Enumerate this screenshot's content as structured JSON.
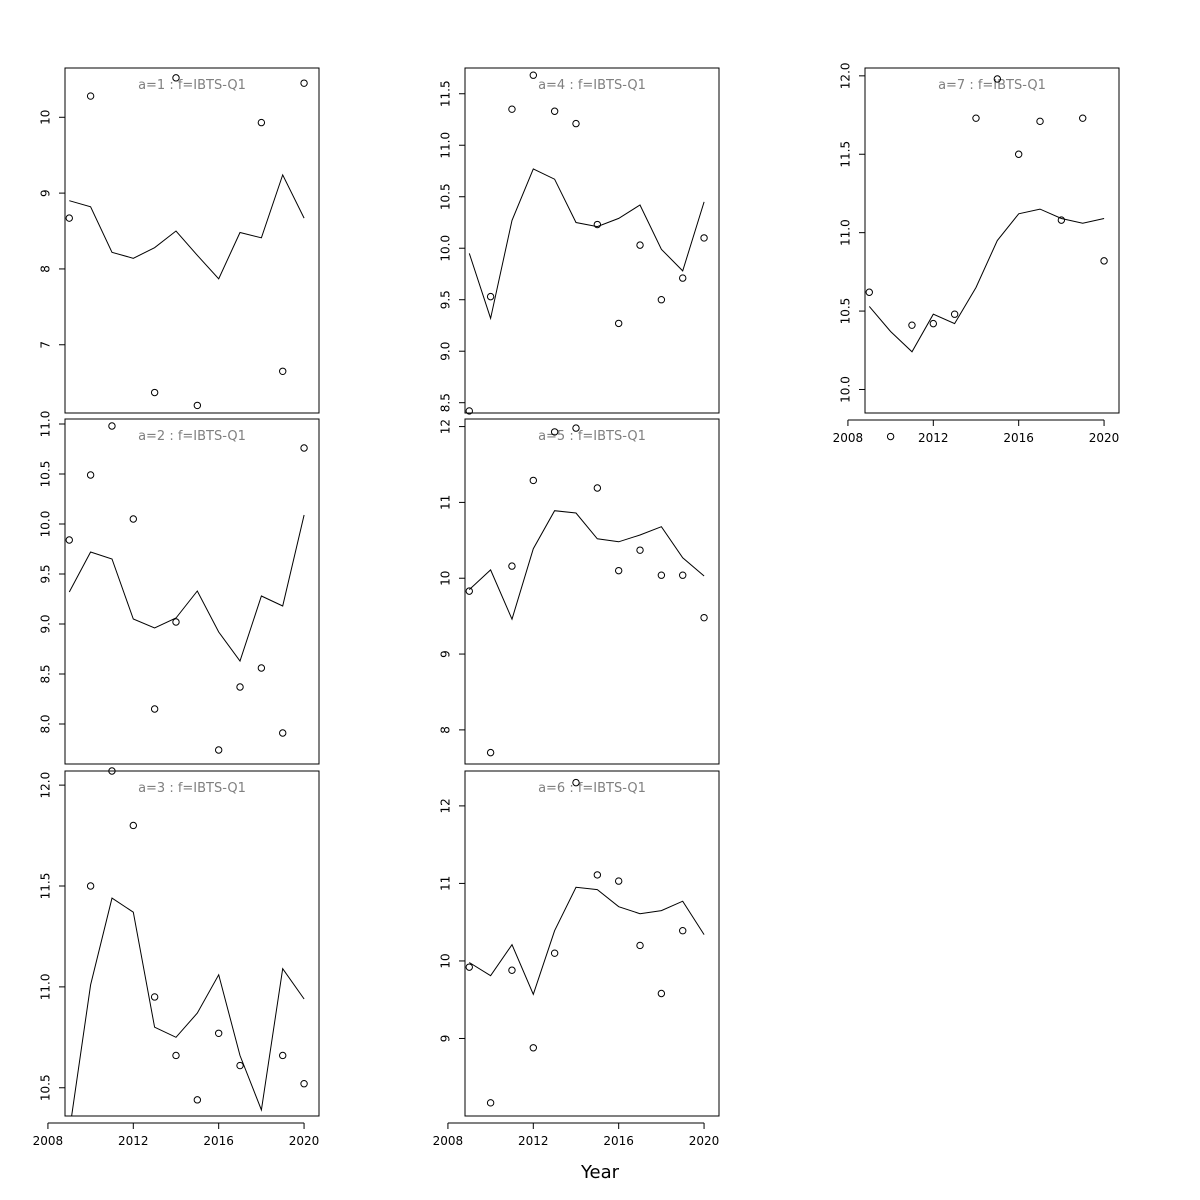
{
  "figure": {
    "xlabel": "Year"
  },
  "chart_data": [
    {
      "type": "scatter",
      "title": "a=1  :  f=IBTS-Q1",
      "x_ticks": [],
      "y_ticks": [
        "7",
        "8",
        "9",
        "10"
      ],
      "xlim": [
        2008.8,
        2020.7
      ],
      "ylim": [
        6.1,
        10.65
      ],
      "years": [
        2009,
        2010,
        2011,
        2012,
        2013,
        2014,
        2015,
        2016,
        2017,
        2018,
        2019,
        2020
      ],
      "observed": [
        8.67,
        10.28,
        null,
        null,
        6.37,
        10.52,
        6.2,
        null,
        null,
        9.93,
        6.65,
        10.45
      ],
      "fitted": [
        8.9,
        8.82,
        8.22,
        8.14,
        8.28,
        8.5,
        8.18,
        7.87,
        8.48,
        8.41,
        9.24,
        8.67
      ]
    },
    {
      "type": "scatter",
      "title": "a=2  :  f=IBTS-Q1",
      "x_ticks": [],
      "y_ticks": [
        "8.0",
        "8.5",
        "9.0",
        "9.5",
        "10.0",
        "10.5",
        "11.0"
      ],
      "xlim": [
        2008.8,
        2020.7
      ],
      "ylim": [
        7.6,
        11.05
      ],
      "years": [
        2009,
        2010,
        2011,
        2012,
        2013,
        2014,
        2015,
        2016,
        2017,
        2018,
        2019,
        2020
      ],
      "observed": [
        9.84,
        10.49,
        10.98,
        10.05,
        8.15,
        9.02,
        null,
        7.74,
        8.37,
        8.56,
        7.91,
        10.76
      ],
      "fitted": [
        9.32,
        9.72,
        9.65,
        9.05,
        8.96,
        9.06,
        9.33,
        8.92,
        8.63,
        9.28,
        9.18,
        10.09
      ]
    },
    {
      "type": "scatter",
      "title": "a=3  :  f=IBTS-Q1",
      "x_ticks": [
        "2008",
        "2012",
        "2016",
        "2020"
      ],
      "y_ticks": [
        "10.5",
        "11.0",
        "11.5",
        "12.0"
      ],
      "xlim": [
        2008.8,
        2020.7
      ],
      "ylim": [
        10.36,
        12.07
      ],
      "years": [
        2009,
        2010,
        2011,
        2012,
        2013,
        2014,
        2015,
        2016,
        2017,
        2018,
        2019,
        2020
      ],
      "observed": [
        null,
        11.5,
        12.07,
        11.8,
        10.95,
        10.66,
        10.44,
        10.77,
        10.61,
        null,
        10.66,
        10.52
      ],
      "fitted": [
        10.28,
        11.01,
        11.44,
        11.37,
        10.8,
        10.75,
        10.87,
        11.06,
        10.66,
        10.39,
        11.09,
        10.94
      ]
    },
    {
      "type": "scatter",
      "title": "a=4  :  f=IBTS-Q1",
      "x_ticks": [],
      "y_ticks": [
        "8.5",
        "9.0",
        "9.5",
        "10.0",
        "10.5",
        "11.0",
        "11.5"
      ],
      "xlim": [
        2008.8,
        2020.7
      ],
      "ylim": [
        8.4,
        11.75
      ],
      "years": [
        2009,
        2010,
        2011,
        2012,
        2013,
        2014,
        2015,
        2016,
        2017,
        2018,
        2019,
        2020
      ],
      "observed": [
        8.42,
        9.53,
        11.35,
        11.68,
        11.33,
        11.21,
        10.23,
        9.27,
        10.03,
        9.5,
        9.71,
        10.1
      ],
      "fitted": [
        9.95,
        9.32,
        10.27,
        10.77,
        10.67,
        10.25,
        10.21,
        10.29,
        10.42,
        9.99,
        9.78,
        10.45
      ]
    },
    {
      "type": "scatter",
      "title": "a=5  :  f=IBTS-Q1",
      "x_ticks": [],
      "y_ticks": [
        "8",
        "9",
        "10",
        "11",
        "12"
      ],
      "xlim": [
        2008.8,
        2020.7
      ],
      "ylim": [
        7.55,
        12.1
      ],
      "years": [
        2009,
        2010,
        2011,
        2012,
        2013,
        2014,
        2015,
        2016,
        2017,
        2018,
        2019,
        2020
      ],
      "observed": [
        9.83,
        7.7,
        10.16,
        11.29,
        11.93,
        11.98,
        11.19,
        10.1,
        10.37,
        10.04,
        10.04,
        9.48
      ],
      "fitted": [
        9.85,
        10.11,
        9.46,
        10.39,
        10.89,
        10.86,
        10.52,
        10.48,
        10.57,
        10.68,
        10.27,
        10.03
      ]
    },
    {
      "type": "scatter",
      "title": "a=6  :  f=IBTS-Q1",
      "x_ticks": [
        "2008",
        "2012",
        "2016",
        "2020"
      ],
      "y_ticks": [
        "9",
        "10",
        "11",
        "12"
      ],
      "xlim": [
        2008.8,
        2020.7
      ],
      "ylim": [
        8.0,
        12.45
      ],
      "years": [
        2009,
        2010,
        2011,
        2012,
        2013,
        2014,
        2015,
        2016,
        2017,
        2018,
        2019,
        2020
      ],
      "observed": [
        9.92,
        8.17,
        9.88,
        8.88,
        10.1,
        12.3,
        11.11,
        11.03,
        10.2,
        9.58,
        10.39,
        null
      ],
      "fitted": [
        9.98,
        9.81,
        10.21,
        9.57,
        10.39,
        10.95,
        10.92,
        10.7,
        10.61,
        10.65,
        10.77,
        10.34
      ]
    },
    {
      "type": "scatter",
      "title": "a=7  :  f=IBTS-Q1",
      "x_ticks": [
        "2008",
        "2012",
        "2016",
        "2020"
      ],
      "y_ticks": [
        "10.0",
        "10.5",
        "11.0",
        "11.5",
        "12.0"
      ],
      "xlim": [
        2008.8,
        2020.7
      ],
      "ylim": [
        9.85,
        12.05
      ],
      "years": [
        2009,
        2010,
        2011,
        2012,
        2013,
        2014,
        2015,
        2016,
        2017,
        2018,
        2019,
        2020
      ],
      "observed": [
        10.62,
        9.7,
        10.41,
        10.42,
        10.48,
        11.73,
        11.98,
        11.5,
        11.71,
        11.08,
        11.73,
        10.82
      ],
      "fitted": [
        10.53,
        10.37,
        10.24,
        10.48,
        10.42,
        10.65,
        10.95,
        11.12,
        11.15,
        11.09,
        11.06,
        11.09
      ]
    }
  ]
}
